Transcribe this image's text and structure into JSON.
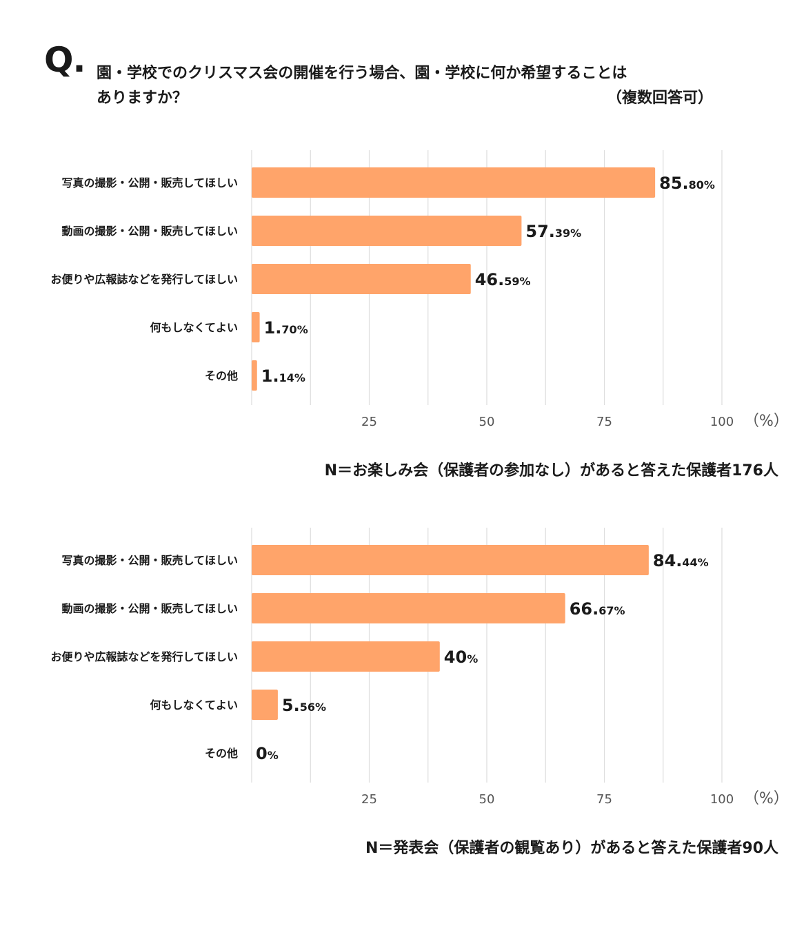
{
  "header": {
    "q_mark": "Q.",
    "question_line1": "園・学校でのクリスマス会の開催を行う場合、園・学校に何か希望することは",
    "question_line2": "ありますか？",
    "note": "（複数回答可）"
  },
  "colors": {
    "bar": "#FFA46A",
    "grid": "#dddddd"
  },
  "chart_data": [
    {
      "type": "bar",
      "orientation": "horizontal",
      "categories": [
        "写真の撮影・公開・販売してほしい",
        "動画の撮影・公開・販売してほしい",
        "お便りや広報誌などを発行してほしい",
        "何もしなくてよい",
        "その他"
      ],
      "values": [
        85.8,
        57.39,
        46.59,
        1.7,
        1.14
      ],
      "value_labels": [
        {
          "int": "85.",
          "dec": "80%"
        },
        {
          "int": "57.",
          "dec": "39%"
        },
        {
          "int": "46.",
          "dec": "59%"
        },
        {
          "int": "1.",
          "dec": "70%"
        },
        {
          "int": "1.",
          "dec": "14%"
        }
      ],
      "xlim": [
        0,
        100
      ],
      "xticks": [
        25,
        50,
        75,
        100
      ],
      "unit": "（%）",
      "grid": true,
      "n_label": "N＝お楽しみ会（保護者の参加なし）があると答えた保護者176人"
    },
    {
      "type": "bar",
      "orientation": "horizontal",
      "categories": [
        "写真の撮影・公開・販売してほしい",
        "動画の撮影・公開・販売してほしい",
        "お便りや広報誌などを発行してほしい",
        "何もしなくてよい",
        "その他"
      ],
      "values": [
        84.44,
        66.67,
        40,
        5.56,
        0
      ],
      "value_labels": [
        {
          "int": "84.",
          "dec": "44%"
        },
        {
          "int": "66.",
          "dec": "67%"
        },
        {
          "int": "40",
          "dec": "%"
        },
        {
          "int": "5.",
          "dec": "56%"
        },
        {
          "int": "0",
          "dec": "%"
        }
      ],
      "xlim": [
        0,
        100
      ],
      "xticks": [
        25,
        50,
        75,
        100
      ],
      "unit": "（%）",
      "grid": true,
      "n_label": "N＝発表会（保護者の観覧あり）があると答えた保護者90人"
    }
  ]
}
